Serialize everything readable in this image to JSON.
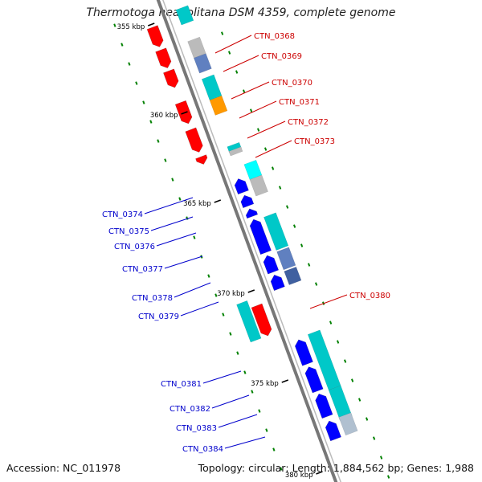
{
  "title": "Thermotoga neapolitana DSM 4359, complete genome",
  "footer": {
    "accession": "Accession: NC_011978",
    "stats": "Topology: circular; Length: 1,884,562 bp; Genes: 1,988"
  },
  "colors": {
    "forward_gene": "#ff0000",
    "reverse_gene": "#0000ff",
    "blast_hit": "#00c8c8",
    "tick": "#008000",
    "backbone": "#888888",
    "label_forward": "#cc0000",
    "label_reverse": "#0000cc"
  },
  "scale": [
    "355 kbp",
    "360 kbp",
    "365 kbp",
    "370 kbp",
    "375 kbp",
    "380 kbp"
  ],
  "labels_forward": [
    "CTN_0368",
    "CTN_0369",
    "CTN_0370",
    "CTN_0371",
    "CTN_0372",
    "CTN_0373",
    "CTN_0380"
  ],
  "labels_reverse": [
    "CTN_0374",
    "CTN_0375",
    "CTN_0376",
    "CTN_0377",
    "CTN_0378",
    "CTN_0379",
    "CTN_0381",
    "CTN_0382",
    "CTN_0383",
    "CTN_0384"
  ]
}
